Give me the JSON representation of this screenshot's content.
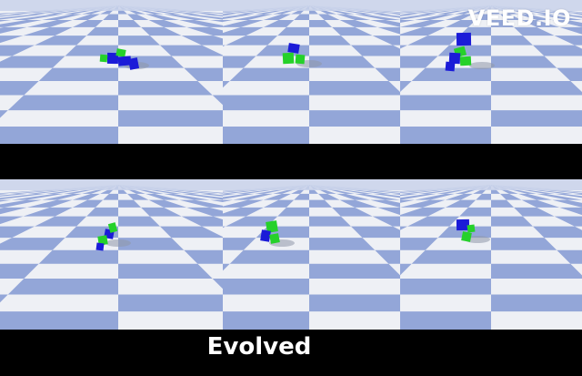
{
  "watermark": "VEED.IO",
  "caption": "Evolved",
  "colors": {
    "sky": "#c9d2ea",
    "tile_blue": "#93a6d8",
    "tile_light": "#eef0f5",
    "cube_green": "#25d12a",
    "cube_blue": "#1b1bd8",
    "shadow": "#8f97a8"
  },
  "panels": [
    {
      "label": "top-left-simulation",
      "creature": "creature-top-left"
    },
    {
      "label": "top-middle-simulation",
      "creature": "creature-top-middle"
    },
    {
      "label": "top-right-simulation",
      "creature": "creature-top-right"
    },
    {
      "label": "bottom-left-simulation",
      "creature": "creature-bottom-left"
    },
    {
      "label": "bottom-middle-simulation",
      "creature": "creature-bottom-middle"
    },
    {
      "label": "bottom-right-simulation",
      "creature": "creature-bottom-right"
    }
  ]
}
